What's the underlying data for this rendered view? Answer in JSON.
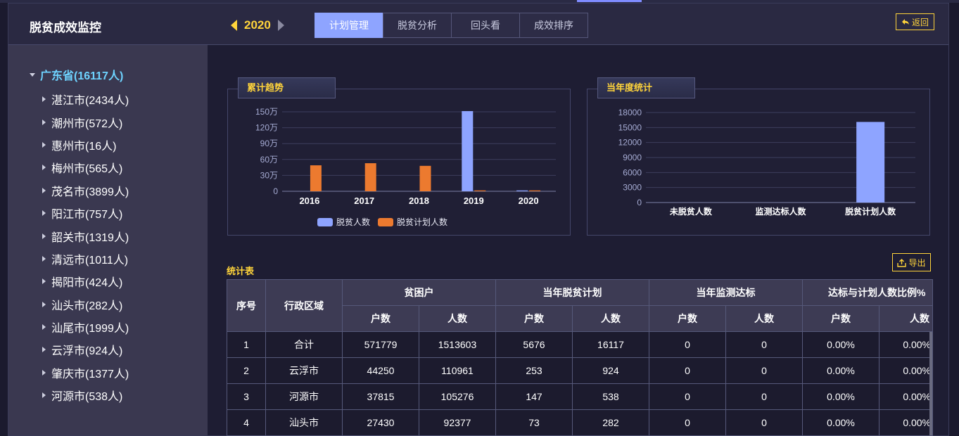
{
  "header": {
    "title": "脱贫成效监控",
    "year": "2020",
    "tabs": [
      "计划管理",
      "脱贫分析",
      "回头看",
      "成效排序"
    ],
    "active_tab": "计划管理",
    "back_label": "返回"
  },
  "sidebar": {
    "root": "广东省(16117人)",
    "items": [
      "湛江市(2434人)",
      "潮州市(572人)",
      "惠州市(16人)",
      "梅州市(565人)",
      "茂名市(3899人)",
      "阳江市(757人)",
      "韶关市(1319人)",
      "清远市(1011人)",
      "揭阳市(424人)",
      "汕头市(282人)",
      "汕尾市(1999人)",
      "云浮市(924人)",
      "肇庆市(1377人)",
      "河源市(538人)"
    ]
  },
  "chart_data": [
    {
      "type": "bar",
      "title": "累计趋势",
      "categories": [
        "2016",
        "2017",
        "2018",
        "2019",
        "2020"
      ],
      "series": [
        {
          "name": "脱贫人数",
          "values": [
            0,
            0,
            0,
            1513603,
            16117
          ],
          "color": "#8ea4ff"
        },
        {
          "name": "脱贫计划人数",
          "values": [
            490000,
            530000,
            480000,
            16117,
            16117
          ],
          "color": "#ec7a2f"
        }
      ],
      "y_ticks": [
        "0",
        "30万",
        "60万",
        "90万",
        "120万",
        "150万"
      ],
      "ylim": [
        0,
        1500000
      ],
      "legend": "bottom"
    },
    {
      "type": "bar",
      "title": "当年度统计",
      "categories": [
        "未脱贫人数",
        "监测达标人数",
        "脱贫计划人数"
      ],
      "values": [
        0,
        0,
        16117
      ],
      "color": "#8ea4ff",
      "y_ticks": [
        "0",
        "3000",
        "6000",
        "9000",
        "12000",
        "15000",
        "18000"
      ],
      "ylim": [
        0,
        18000
      ]
    }
  ],
  "table": {
    "title": "统计表",
    "export_label": "导出",
    "headers": {
      "seq": "序号",
      "region": "行政区域",
      "groups": [
        "贫困户",
        "当年脱贫计划",
        "当年监测达标",
        "达标与计划人数比例%"
      ],
      "sub": [
        "户数",
        "人数"
      ]
    },
    "rows": [
      [
        "1",
        "合计",
        "571779",
        "1513603",
        "5676",
        "16117",
        "0",
        "0",
        "0.00%",
        "0.00%"
      ],
      [
        "2",
        "云浮市",
        "44250",
        "110961",
        "253",
        "924",
        "0",
        "0",
        "0.00%",
        "0.00%"
      ],
      [
        "3",
        "河源市",
        "37815",
        "105276",
        "147",
        "538",
        "0",
        "0",
        "0.00%",
        "0.00%"
      ],
      [
        "4",
        "汕头市",
        "27430",
        "92377",
        "73",
        "282",
        "0",
        "0",
        "0.00%",
        "0.00%"
      ]
    ]
  }
}
